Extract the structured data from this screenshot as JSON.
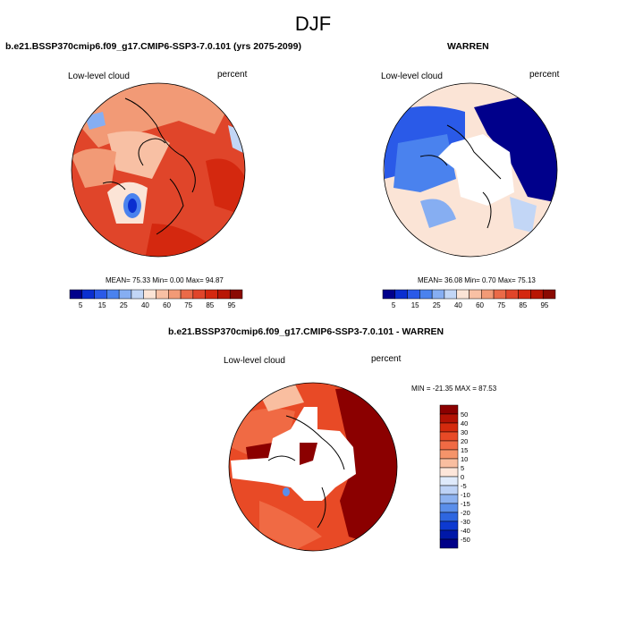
{
  "figure": {
    "season_title": "DJF"
  },
  "panels": [
    {
      "title": "b.e21.BSSP370cmip6.f09_g17.CMIP6-SSP3-7.0.101 (yrs 2075-2099)",
      "left_label": "Low-level cloud",
      "right_label": "percent",
      "stats": "MEAN= 75.33  Min=   0.00  Max=  94.87"
    },
    {
      "title": "WARREN",
      "left_label": "Low-level cloud",
      "right_label": "percent",
      "stats": "MEAN= 36.08  Min=   0.70  Max=  75.13"
    },
    {
      "title": "b.e21.BSSP370cmip6.f09_g17.CMIP6-SSP3-7.0.101 - WARREN",
      "left_label": "Low-level cloud",
      "right_label": "percent",
      "stats": "MIN = -21.35 MAX =  87.53"
    }
  ],
  "colorbar_abs": {
    "tick_labels": [
      "5",
      "15",
      "25",
      "40",
      "60",
      "75",
      "85",
      "95"
    ],
    "colors": [
      "#00008b",
      "#0a2fd0",
      "#2a5ae8",
      "#4a82ee",
      "#86aef2",
      "#c2d6f6",
      "#fbe4d6",
      "#f8c0a4",
      "#f29a76",
      "#ea6a48",
      "#e0452a",
      "#d4280f",
      "#b81604",
      "#8a0a02"
    ]
  },
  "colorbar_diff": {
    "tick_labels": [
      "50",
      "40",
      "30",
      "20",
      "15",
      "10",
      "5",
      "0",
      "-5",
      "-10",
      "-15",
      "-20",
      "-30",
      "-40",
      "-50"
    ],
    "colors": [
      "#8b0000",
      "#b31204",
      "#d42a0d",
      "#e84a26",
      "#f06a44",
      "#f5946a",
      "#f9bea0",
      "#fde6da",
      "#dfeafb",
      "#bdd2f6",
      "#8db2f0",
      "#5a8eea",
      "#2e66e0",
      "#0d3ad0",
      "#0018a8",
      "#000088"
    ]
  },
  "chart_data": [
    {
      "type": "heatmap",
      "projection": "north-polar-stereographic",
      "title": "b.e21.BSSP370cmip6.f09_g17.CMIP6-SSP3-7.0.101 (yrs 2075-2099)",
      "variable": "Low-level cloud",
      "units": "percent",
      "mean": 75.33,
      "min": 0.0,
      "max": 94.87,
      "levels": [
        5,
        10,
        15,
        20,
        25,
        30,
        40,
        50,
        60,
        70,
        75,
        80,
        85,
        90,
        95
      ]
    },
    {
      "type": "heatmap",
      "projection": "north-polar-stereographic",
      "title": "WARREN",
      "variable": "Low-level cloud",
      "units": "percent",
      "mean": 36.08,
      "min": 0.7,
      "max": 75.13,
      "levels": [
        5,
        10,
        15,
        20,
        25,
        30,
        40,
        50,
        60,
        70,
        75,
        80,
        85,
        90,
        95
      ]
    },
    {
      "type": "heatmap",
      "projection": "north-polar-stereographic",
      "title": "b.e21.BSSP370cmip6.f09_g17.CMIP6-SSP3-7.0.101 - WARREN",
      "variable": "Low-level cloud",
      "units": "percent",
      "min": -21.35,
      "max": 87.53,
      "levels": [
        -50,
        -40,
        -30,
        -20,
        -15,
        -10,
        -5,
        0,
        5,
        10,
        15,
        20,
        30,
        40,
        50
      ]
    }
  ]
}
